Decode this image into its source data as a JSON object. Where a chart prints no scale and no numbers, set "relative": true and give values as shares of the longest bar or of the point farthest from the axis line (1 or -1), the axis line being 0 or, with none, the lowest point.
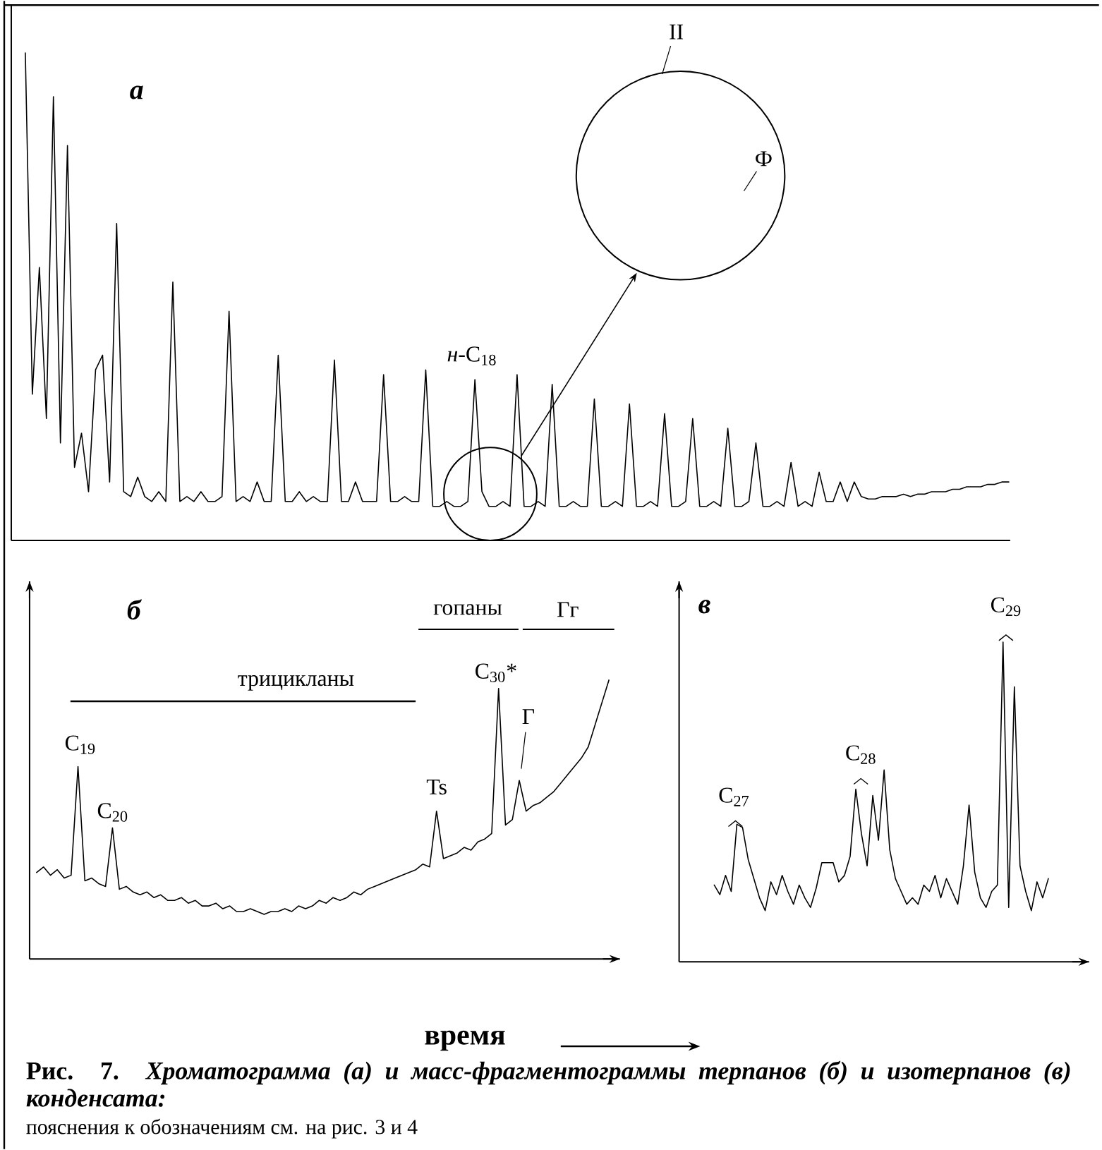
{
  "chart_data": [
    {
      "type": "line",
      "relative": true,
      "title": "а",
      "categories": [
        null,
        null,
        null,
        null,
        null,
        null,
        null,
        null,
        null,
        null,
        null,
        null,
        null,
        null,
        null,
        null,
        null,
        null,
        null,
        null,
        null,
        null,
        null,
        null,
        null,
        null,
        null,
        null,
        null,
        null,
        null,
        null,
        null,
        null,
        null,
        null,
        null,
        null,
        null,
        null,
        null,
        null,
        null,
        null,
        null,
        null,
        null,
        null,
        null,
        null,
        null,
        null,
        null,
        null,
        null,
        null,
        null,
        null,
        null,
        null,
        null,
        null,
        null,
        null,
        null,
        null,
        null,
        null,
        null,
        null,
        null,
        null,
        null,
        null,
        null,
        null,
        null,
        null,
        null,
        null,
        null,
        null,
        null,
        null,
        null,
        null,
        null,
        null,
        null,
        null,
        null,
        null,
        null,
        null,
        null,
        null,
        null,
        null,
        null,
        null,
        null,
        null,
        null,
        null,
        null,
        null,
        null,
        null,
        null,
        null,
        null,
        null,
        null,
        null,
        null,
        null,
        null,
        null,
        null,
        null,
        null,
        null,
        null,
        null,
        null,
        null,
        null,
        null,
        null,
        null,
        null,
        null,
        null,
        null,
        null,
        null,
        null,
        null,
        null,
        null,
        null
      ],
      "series": [
        {
          "color": "#000000",
          "values": [
            1.0,
            0.3,
            0.56,
            0.25,
            0.91,
            0.2,
            0.81,
            0.15,
            0.22,
            0.1,
            0.35,
            0.38,
            0.12,
            0.65,
            0.1,
            0.09,
            0.13,
            0.09,
            0.08,
            0.1,
            0.08,
            0.53,
            0.08,
            0.09,
            0.08,
            0.1,
            0.08,
            0.08,
            0.09,
            0.47,
            0.08,
            0.09,
            0.08,
            0.12,
            0.08,
            0.08,
            0.38,
            0.08,
            0.08,
            0.1,
            0.08,
            0.09,
            0.08,
            0.08,
            0.37,
            0.08,
            0.08,
            0.12,
            0.08,
            0.08,
            0.08,
            0.34,
            0.08,
            0.08,
            0.09,
            0.08,
            0.08,
            0.35,
            0.07,
            0.07,
            0.08,
            0.07,
            0.07,
            0.08,
            0.33,
            0.1,
            0.07,
            0.07,
            0.08,
            0.07,
            0.34,
            0.07,
            0.07,
            0.08,
            0.07,
            0.32,
            0.07,
            0.07,
            0.08,
            0.07,
            0.07,
            0.29,
            0.07,
            0.07,
            0.08,
            0.07,
            0.28,
            0.07,
            0.07,
            0.08,
            0.07,
            0.26,
            0.07,
            0.07,
            0.08,
            0.25,
            0.07,
            0.07,
            0.08,
            0.07,
            0.23,
            0.07,
            0.07,
            0.08,
            0.2,
            0.07,
            0.07,
            0.08,
            0.07,
            0.16,
            0.07,
            0.08,
            0.07,
            0.14,
            0.08,
            0.08,
            0.12,
            0.08,
            0.12,
            0.09,
            0.085,
            0.085,
            0.09,
            0.09,
            0.09,
            0.095,
            0.09,
            0.095,
            0.095,
            0.1,
            0.1,
            0.1,
            0.105,
            0.105,
            0.11,
            0.11,
            0.11,
            0.115,
            0.115,
            0.12,
            0.12
          ]
        }
      ],
      "annotations": [
        "*н*-C$_{18}$",
        "II",
        "Ф",
        "**Рис. 7.** *Хроматограмма (а) и масс-фрагментограммы терпанов (б) и изотерпанов (в) конденсата:*",
        "пояснения к обозначениям см. на рис. 3 и 4"
      ]
    },
    {
      "type": "line",
      "relative": true,
      "title": "б",
      "xlabel": "время",
      "categories": [
        null,
        null,
        null,
        null,
        null,
        null,
        null,
        null,
        null,
        null,
        null,
        null,
        null,
        null,
        null,
        null,
        null,
        null,
        null,
        null,
        null,
        null,
        null,
        null,
        null,
        null,
        null,
        null,
        null,
        null,
        null,
        null,
        null,
        null,
        null,
        null,
        null,
        null,
        null,
        null,
        null,
        null,
        null,
        null,
        null,
        null,
        null,
        null,
        null,
        null,
        null,
        null,
        null,
        null,
        null,
        null,
        null,
        null,
        null,
        null,
        null,
        null,
        null,
        null,
        null,
        null,
        null,
        null,
        null,
        null,
        null,
        null,
        null,
        null,
        null,
        null,
        null,
        null,
        null,
        null,
        null,
        null,
        null,
        null
      ],
      "series": [
        {
          "color": "#000000",
          "values": [
            0.31,
            0.33,
            0.3,
            0.32,
            0.29,
            0.3,
            0.69,
            0.28,
            0.29,
            0.27,
            0.26,
            0.47,
            0.25,
            0.26,
            0.24,
            0.23,
            0.24,
            0.22,
            0.23,
            0.21,
            0.21,
            0.22,
            0.2,
            0.21,
            0.19,
            0.19,
            0.2,
            0.18,
            0.19,
            0.17,
            0.17,
            0.18,
            0.17,
            0.16,
            0.17,
            0.17,
            0.18,
            0.17,
            0.19,
            0.18,
            0.19,
            0.21,
            0.2,
            0.22,
            0.21,
            0.22,
            0.24,
            0.23,
            0.25,
            0.26,
            0.27,
            0.28,
            0.29,
            0.3,
            0.31,
            0.32,
            0.34,
            0.33,
            0.53,
            0.36,
            0.37,
            0.38,
            0.4,
            0.39,
            0.42,
            0.43,
            0.45,
            0.97,
            0.48,
            0.5,
            0.64,
            0.53,
            0.55,
            0.56,
            0.58,
            0.6,
            0.63,
            0.66,
            0.69,
            0.72,
            0.76,
            0.84,
            0.92,
            1.0
          ]
        }
      ],
      "annotations": [
        "гопаны",
        "Гг",
        "трицикланы",
        "C$_{19}$",
        "C$_{20}$",
        "Ts",
        "C$_{30}$*",
        "Г"
      ]
    },
    {
      "type": "line",
      "relative": true,
      "title": "в",
      "categories": [
        null,
        null,
        null,
        null,
        null,
        null,
        null,
        null,
        null,
        null,
        null,
        null,
        null,
        null,
        null,
        null,
        null,
        null,
        null,
        null,
        null,
        null,
        null,
        null,
        null,
        null,
        null,
        null,
        null,
        null,
        null,
        null,
        null,
        null,
        null,
        null,
        null,
        null,
        null,
        null,
        null,
        null,
        null,
        null,
        null,
        null,
        null,
        null,
        null,
        null,
        null,
        null,
        null,
        null,
        null,
        null,
        null,
        null,
        null,
        null
      ],
      "series": [
        {
          "color": "#000000",
          "values": [
            0.24,
            0.21,
            0.27,
            0.22,
            0.43,
            0.42,
            0.32,
            0.26,
            0.2,
            0.16,
            0.25,
            0.21,
            0.27,
            0.22,
            0.18,
            0.24,
            0.2,
            0.17,
            0.23,
            0.31,
            0.31,
            0.31,
            0.25,
            0.27,
            0.33,
            0.54,
            0.4,
            0.3,
            0.52,
            0.38,
            0.6,
            0.35,
            0.26,
            0.22,
            0.18,
            0.2,
            0.18,
            0.24,
            0.22,
            0.27,
            0.2,
            0.26,
            0.22,
            0.18,
            0.3,
            0.49,
            0.28,
            0.2,
            0.17,
            0.22,
            0.24,
            1.0,
            0.17,
            0.86,
            0.3,
            0.22,
            0.16,
            0.25,
            0.2,
            0.26
          ]
        }
      ],
      "annotations": [
        "C$_{27}$",
        "C$_{28}$",
        "C$_{29}$"
      ]
    }
  ]
}
